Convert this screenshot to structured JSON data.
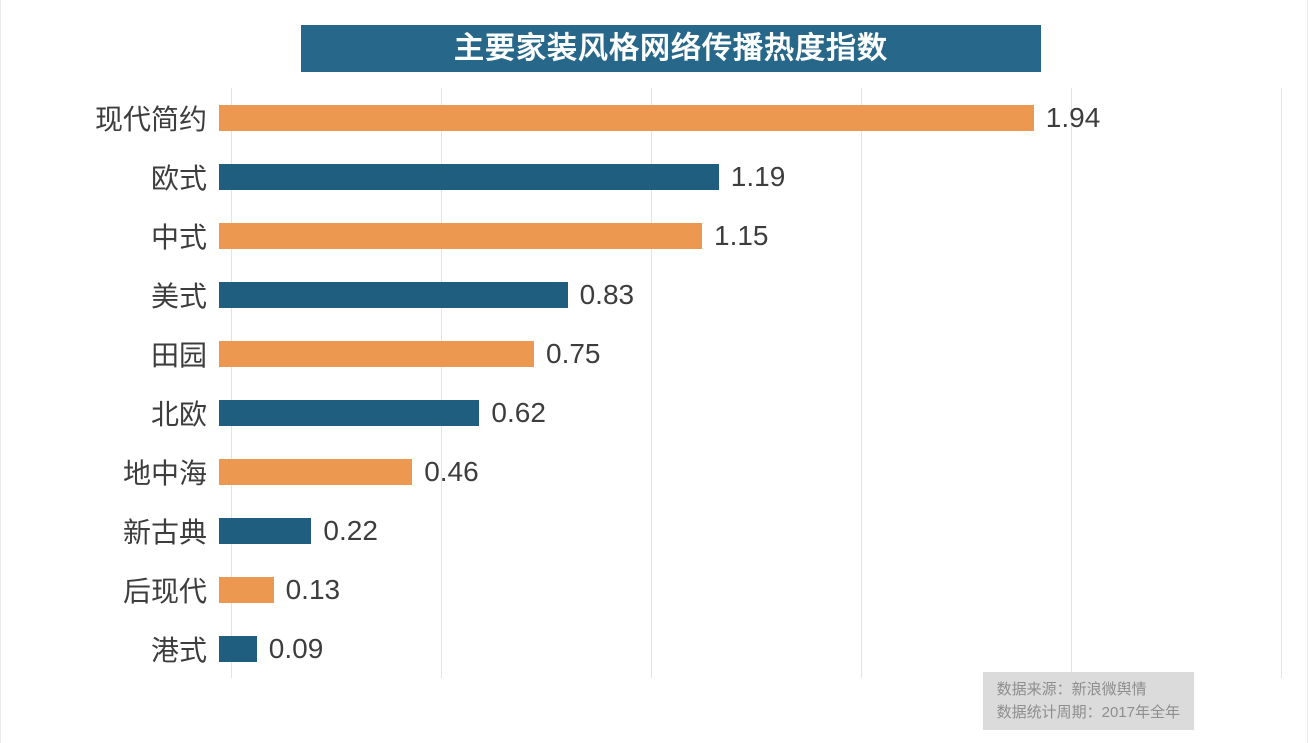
{
  "chart_data": {
    "type": "bar",
    "orientation": "horizontal",
    "title": "主要家装风格网络传播热度指数",
    "categories": [
      "现代简约",
      "欧式",
      "中式",
      "美式",
      "田园",
      "北欧",
      "地中海",
      "新古典",
      "后现代",
      "港式"
    ],
    "values": [
      1.94,
      1.19,
      1.15,
      0.83,
      0.75,
      0.62,
      0.46,
      0.22,
      0.13,
      0.09
    ],
    "xlim": [
      0,
      2.5
    ],
    "gridlines": [
      0,
      0.5,
      1.0,
      1.5,
      2.0,
      2.5
    ],
    "grid": "vertical-only",
    "legend": "none",
    "bar_colors_alternating": [
      "#EC9850",
      "#1F5E7E"
    ],
    "value_label_decimals": 2
  },
  "colors": {
    "title_bg": "#27678A",
    "orange": "#EC9850",
    "teal": "#1F5E7E",
    "gridline": "#E3E3E3",
    "text": "#3D3D3D",
    "footnote_bg": "#DBDBDB",
    "footnote_text": "#8E8E8E"
  },
  "footnote": {
    "line1": "数据来源：新浪微舆情",
    "line2": "数据统计周期：2017年全年"
  }
}
